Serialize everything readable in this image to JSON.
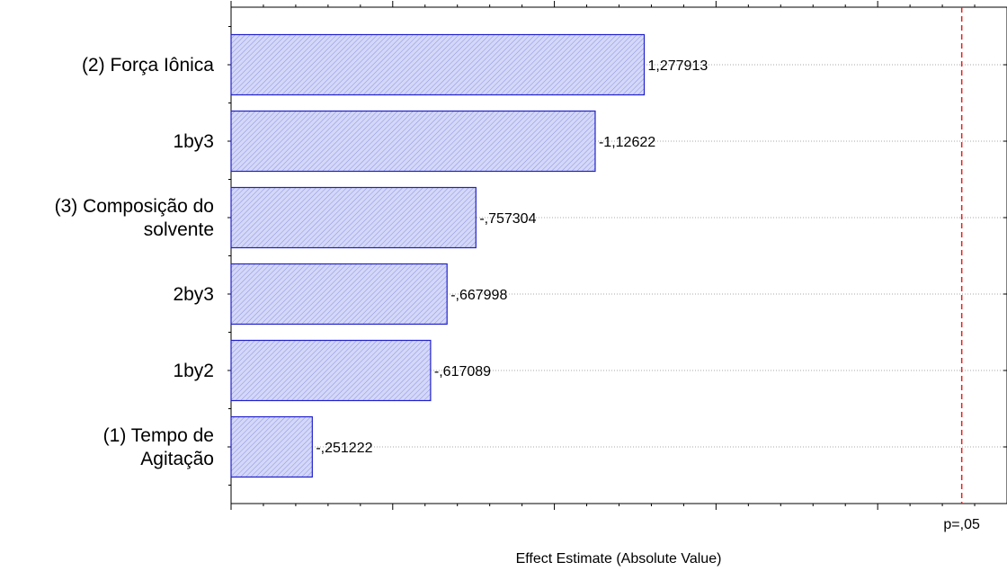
{
  "chart_data": {
    "type": "bar",
    "orientation": "horizontal",
    "title": "",
    "xlabel": "Effect Estimate (Absolute Value)",
    "ylabel": "",
    "xlim": [
      0,
      2.4
    ],
    "grid": true,
    "categories": [
      [
        "(2) Força Iônica"
      ],
      [
        "1by3"
      ],
      [
        "(3) Composição do",
        "solvente"
      ],
      [
        "2by3"
      ],
      [
        "1by2"
      ],
      [
        "(1) Tempo de",
        "Agitação"
      ]
    ],
    "values": [
      1.277913,
      1.12622,
      0.757304,
      0.667998,
      0.617089,
      0.251222
    ],
    "value_labels": [
      "1,277913",
      "-1,12622",
      "-,757304",
      "-,667998",
      "-,617089",
      "-,251222"
    ],
    "reference_line": {
      "value": 2.26,
      "label": "p=,05",
      "color": "#e8201c"
    },
    "bar_color": "#c8cdf5",
    "bar_edge_color": "#2020cc"
  }
}
